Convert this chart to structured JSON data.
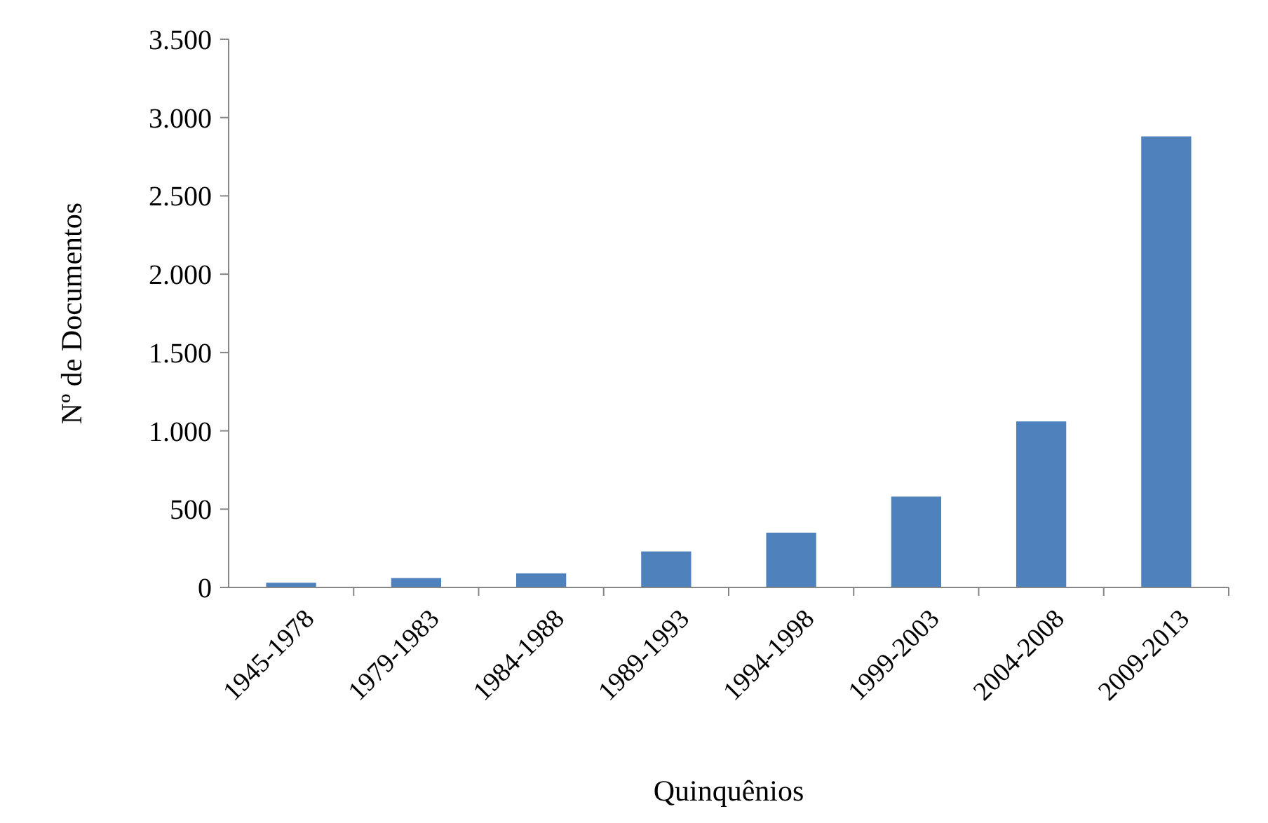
{
  "chart_data": {
    "type": "bar",
    "xlabel": "Quinquênios",
    "ylabel": "Nº de Documentos",
    "categories": [
      "1945-1978",
      "1979-1983",
      "1984-1988",
      "1989-1993",
      "1994-1998",
      "1999-2003",
      "2004-2008",
      "2009-2013"
    ],
    "values": [
      30,
      60,
      90,
      230,
      350,
      580,
      1060,
      2880
    ],
    "color": "#4f81bd",
    "ylim": [
      0,
      3500
    ],
    "yticks": [
      {
        "value": 0,
        "label": "0"
      },
      {
        "value": 500,
        "label": "500"
      },
      {
        "value": 1000,
        "label": "1.000"
      },
      {
        "value": 1500,
        "label": "1.500"
      },
      {
        "value": 2000,
        "label": "2.000"
      },
      {
        "value": 2500,
        "label": "2.500"
      },
      {
        "value": 3000,
        "label": "3.000"
      },
      {
        "value": 3500,
        "label": "3.500"
      }
    ],
    "grid": false
  }
}
